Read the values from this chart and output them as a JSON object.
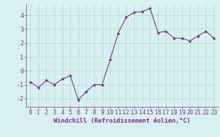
{
  "x": [
    0,
    1,
    2,
    3,
    4,
    5,
    6,
    7,
    8,
    9,
    10,
    11,
    12,
    13,
    14,
    15,
    16,
    17,
    18,
    19,
    20,
    21,
    22,
    23
  ],
  "y": [
    -0.8,
    -1.2,
    -0.7,
    -1.0,
    -0.6,
    -0.35,
    -2.1,
    -1.5,
    -1.0,
    -1.0,
    0.8,
    2.7,
    3.85,
    4.2,
    4.25,
    4.5,
    2.75,
    2.85,
    2.35,
    2.35,
    2.15,
    2.5,
    2.85,
    2.35
  ],
  "line_color": "#7b2d8b",
  "marker": "*",
  "bg_color": "#d8f0f0",
  "grid_color": "#aad4d4",
  "axis_label_color": "#7b2d8b",
  "xlabel": "Windchill (Refroidissement éolien,°C)",
  "ylim": [
    -2.6,
    4.8
  ],
  "xlim": [
    -0.5,
    23.5
  ],
  "yticks": [
    -2,
    -1,
    0,
    1,
    2,
    3,
    4
  ],
  "xticks": [
    0,
    1,
    2,
    3,
    4,
    5,
    6,
    7,
    8,
    9,
    10,
    11,
    12,
    13,
    14,
    15,
    16,
    17,
    18,
    19,
    20,
    21,
    22,
    23
  ],
  "tick_label_color": "#7b2d8b",
  "font_size_xlabel": 6.5,
  "font_size_ticks": 6.0,
  "marker_size": 3.0,
  "line_width": 0.8
}
